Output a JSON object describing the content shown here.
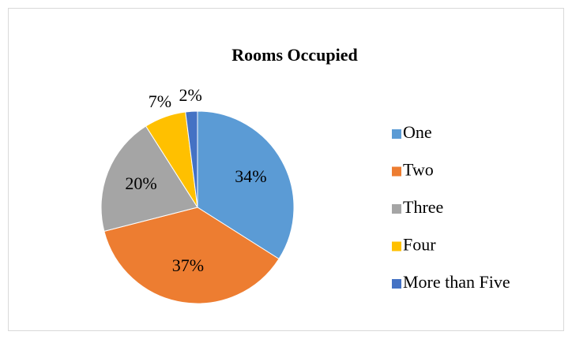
{
  "chart_data": {
    "type": "pie",
    "title": "Rooms  Occupied",
    "categories": [
      "One",
      "Two",
      "Three",
      "Four",
      "More than Five"
    ],
    "values": [
      34,
      37,
      20,
      7,
      2
    ],
    "value_labels": [
      "34%",
      "37%",
      "20%",
      "7%",
      "2%"
    ],
    "colors": [
      "#5b9bd5",
      "#ed7d31",
      "#a5a5a5",
      "#ffc000",
      "#4472c4"
    ]
  }
}
